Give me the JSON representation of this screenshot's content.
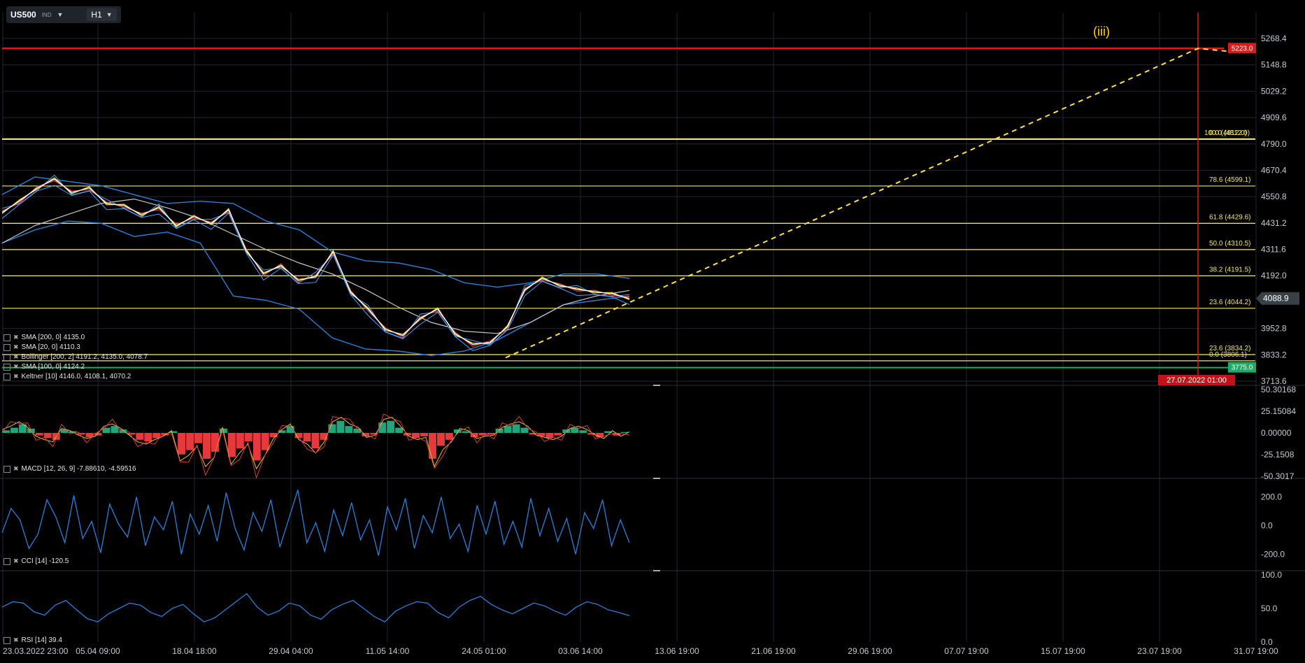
{
  "toolbar": {
    "symbol": "US500",
    "type": "IND",
    "timeframe": "H1"
  },
  "wave_label": "(iii)",
  "colors": {
    "price_line": "#ffffff",
    "sma_yellow": "#ffe14d",
    "sma_red": "#d83a3a",
    "sma_gray": "#c9c9c9",
    "bollinger": "#2d7fd6",
    "keltner": "#4aa0ff",
    "fib_line": "#f2e46d",
    "target_line": "#d51d1d",
    "support_line": "#1eaa67",
    "trend_dashed": "#ffe14d",
    "macd_up": "#1fa67a",
    "macd_down": "#e5393b",
    "osc_line": "#2d7fd6",
    "grid": "#22262c"
  },
  "chart_data": [
    {
      "type": "line",
      "panel": "price",
      "ylim": [
        3713.6,
        5268.4
      ],
      "yticks": [
        "5268.4",
        "5148.8",
        "5029.2",
        "4909.6",
        "4790.0",
        "4670.4",
        "4550.8",
        "4431.2",
        "4311.6",
        "4192.0",
        "4088.9",
        "3952.8",
        "3833.2",
        "3713.6"
      ],
      "xticks": [
        "23.03.2022 23:00",
        "05.04 09:00",
        "18.04 18:00",
        "29.04 04:00",
        "11.05 14:00",
        "24.05 01:00",
        "03.06 14:00",
        "13.06 19:00",
        "21.06 19:00",
        "29.06 19:00",
        "07.07 19:00",
        "15.07 19:00",
        "23.07 19:00",
        "31.07 19:00"
      ],
      "current_price": "4088.9",
      "target_price_label": "5223.0",
      "target_price": 5223.0,
      "support_price_label": "3775.0",
      "support_price": 3775.0,
      "cursor_date": "27.07.2022 01:00",
      "fib_levels": [
        {
          "label": "100.0 (4812.0)",
          "value": 4812.0
        },
        {
          "label": "0.0 (4812.0)",
          "value": 4812.0
        },
        {
          "label": "78.6 (4599.1)",
          "value": 4599.1
        },
        {
          "label": "61.8 (4429.6)",
          "value": 4429.6
        },
        {
          "label": "50.0 (4310.5)",
          "value": 4310.5
        },
        {
          "label": "38.2 (4191.5)",
          "value": 4191.5
        },
        {
          "label": "23.6 (4044.2)",
          "value": 4044.2
        },
        {
          "label": "23.6 (3834.2)",
          "value": 3834.2
        },
        {
          "label": "0.0 (3806.1)",
          "value": 3806.1
        }
      ],
      "series": [
        {
          "name": "SMA [200, 0] 4135.0"
        },
        {
          "name": "SMA [20, 0] 4110.3"
        },
        {
          "name": "Bollinger [200, 2] 4191.2, 4135.0, 4078.7"
        },
        {
          "name": "SMA [100, 0] 4124.2"
        },
        {
          "name": "Keltner [10] 4146.0, 4108.1, 4070.2"
        }
      ],
      "price_path": [
        4480,
        4530,
        4590,
        4630,
        4570,
        4590,
        4520,
        4510,
        4470,
        4500,
        4420,
        4460,
        4430,
        4490,
        4310,
        4200,
        4240,
        4170,
        4190,
        4300,
        4120,
        4040,
        3950,
        3920,
        4000,
        4040,
        3930,
        3880,
        3890,
        3960,
        4130,
        4180,
        4150,
        4130,
        4120,
        4110,
        4088.9
      ],
      "bollinger_upper": [
        4560,
        4640,
        4620,
        4600,
        4560,
        4520,
        4530,
        4520,
        4440,
        4400,
        4300,
        4260,
        4250,
        4220,
        4160,
        4140,
        4160,
        4200,
        4200,
        4180
      ],
      "bollinger_lower": [
        4340,
        4400,
        4440,
        4430,
        4370,
        4390,
        4340,
        4100,
        4080,
        4040,
        3910,
        3860,
        3850,
        3830,
        3850,
        3900,
        3980,
        4060,
        4080,
        4100
      ],
      "sma_gray": [
        4340,
        4420,
        4470,
        4520,
        4540,
        4500,
        4450,
        4380,
        4310,
        4250,
        4200,
        4130,
        4050,
        3980,
        3940,
        3930,
        3980,
        4060,
        4100,
        4125
      ]
    },
    {
      "type": "bar",
      "panel": "macd",
      "title": "MACD [12, 26, 9] -7.88610, -4.59516",
      "ylim": [
        -50.3017,
        50.30168
      ],
      "yticks": [
        "50.30168",
        "25.15084",
        "0.00000",
        "-25.1508",
        "-50.3017"
      ],
      "values": [
        3,
        6,
        10,
        5,
        -3,
        -6,
        -8,
        4,
        2,
        -2,
        -5,
        -3,
        6,
        8,
        4,
        -2,
        -8,
        -10,
        -6,
        -3,
        2,
        -25,
        -20,
        -12,
        -30,
        -22,
        5,
        -28,
        -18,
        -10,
        -32,
        -20,
        -5,
        3,
        8,
        -6,
        -10,
        -18,
        -8,
        10,
        14,
        8,
        5,
        -4,
        -2,
        12,
        14,
        6,
        -3,
        -6,
        -4,
        -30,
        -15,
        -8,
        4,
        2,
        -5,
        -3,
        -2,
        5,
        8,
        10,
        6,
        -2,
        -4,
        -6,
        -3,
        4,
        6,
        3,
        -2,
        -5,
        2,
        -3,
        1
      ]
    },
    {
      "type": "line",
      "panel": "cci",
      "title": "CCI [14] -120.5",
      "ylim": [
        -300,
        300
      ],
      "yticks": [
        "200.0",
        "0.0",
        "-200.0"
      ],
      "values": [
        -50,
        120,
        40,
        -160,
        -60,
        180,
        60,
        -120,
        210,
        -90,
        30,
        -190,
        150,
        10,
        -80,
        200,
        -140,
        60,
        -30,
        170,
        -200,
        80,
        -60,
        140,
        -110,
        230,
        -20,
        -170,
        90,
        -40,
        180,
        -150,
        50,
        250,
        -120,
        20,
        -180,
        110,
        -70,
        160,
        -100,
        40,
        -210,
        130,
        -30,
        190,
        -160,
        70,
        -50,
        200,
        -90,
        10,
        -180,
        140,
        -60,
        170,
        -130,
        30,
        -150,
        190,
        -70,
        120,
        -110,
        50,
        -200,
        90,
        -20,
        180,
        -140,
        40,
        -120.5
      ]
    },
    {
      "type": "line",
      "panel": "rsi",
      "title": "RSI [14] 39.4",
      "ylim": [
        0,
        100
      ],
      "yticks": [
        "100.0",
        "50.0",
        "0.0"
      ],
      "values": [
        52,
        60,
        58,
        45,
        40,
        55,
        62,
        48,
        35,
        30,
        42,
        50,
        58,
        55,
        44,
        38,
        50,
        56,
        42,
        30,
        36,
        48,
        60,
        72,
        52,
        40,
        46,
        58,
        54,
        40,
        34,
        48,
        56,
        62,
        50,
        38,
        30,
        46,
        54,
        60,
        58,
        44,
        36,
        52,
        62,
        68,
        56,
        48,
        42,
        50,
        58,
        54,
        46,
        40,
        52,
        60,
        56,
        48,
        44,
        39.4
      ]
    }
  ]
}
